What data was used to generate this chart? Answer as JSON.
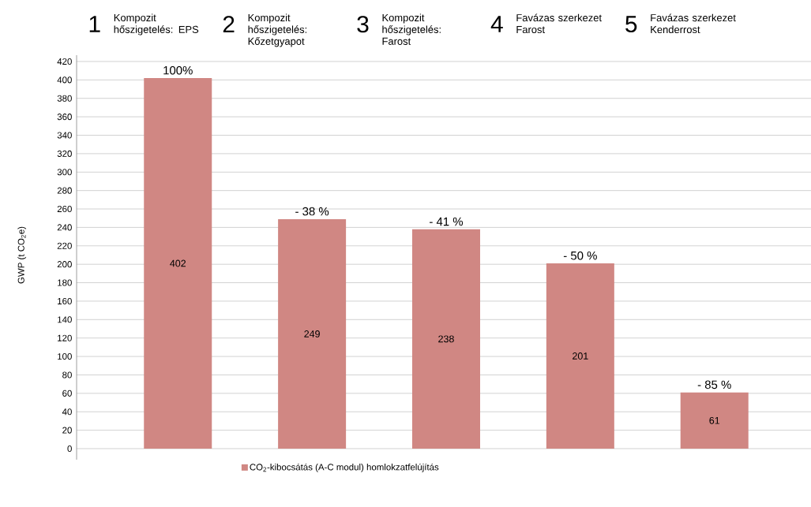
{
  "chart_data": {
    "type": "bar",
    "categories": [
      "Kompozit hőszigetelés: EPS",
      "Kompozit hőszigetelés: Kőzetgyapot",
      "Kompozit hőszigetelés: Farost",
      "Favázas szerkezet Farost",
      "Favázas szerkezet Kenderrost"
    ],
    "annotations": [
      "1",
      "2",
      "3",
      "4",
      "5",
      {
        "text": "100%",
        "x": "Kompozit hőszigetelés: EPS",
        "y": 402
      },
      {
        "text": "- 38 %",
        "x": "Kompozit hőszigetelés: Kőzetgyapot",
        "y": 249
      },
      {
        "text": "- 41 %",
        "x": "Kompozit hőszigetelés: Farost",
        "y": 238
      },
      {
        "text": "- 50 %",
        "x": "Favázas szerkezet Farost",
        "y": 201
      },
      {
        "text": "- 85 %",
        "x": "Favázas szerkezet Kenderrost",
        "y": 61
      }
    ],
    "series": [
      {
        "name": "CO$_{2}$-kibocsátás (A-C modul) homlokzatfelújítás",
        "color": "#d08783",
        "values": [
          402,
          249,
          238,
          201,
          61
        ]
      }
    ],
    "data_labels": true,
    "ylabel": "GWP (t CO$_{2}$e)",
    "ylim": [
      0,
      420
    ],
    "yticks": [
      0,
      20,
      40,
      60,
      80,
      100,
      120,
      140,
      160,
      180,
      200,
      220,
      240,
      260,
      280,
      300,
      320,
      340,
      360,
      380,
      400,
      420
    ],
    "grid": "y",
    "legend": "bottom"
  }
}
